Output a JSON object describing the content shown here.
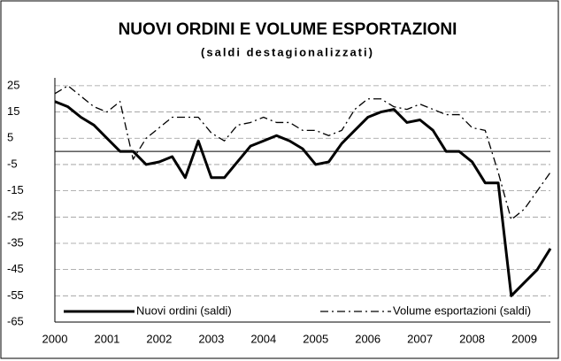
{
  "chart_data": {
    "type": "line",
    "title": "NUOVI ORDINI E VOLUME ESPORTAZIONI",
    "subtitle": "(saldi destagionalizzati)",
    "categories": [
      "2000",
      null,
      null,
      null,
      "2001",
      null,
      null,
      null,
      "2002",
      null,
      null,
      null,
      "2003",
      null,
      null,
      null,
      "2004",
      null,
      null,
      null,
      "2005",
      null,
      null,
      null,
      "2006",
      null,
      null,
      null,
      "2007",
      null,
      null,
      null,
      "2008",
      null,
      null,
      null,
      "2009",
      null,
      null
    ],
    "series": [
      {
        "name": "Nuovi ordini (saldi)",
        "color": "#000000",
        "style": "solid",
        "values": [
          19,
          17,
          13,
          10,
          5,
          0,
          0,
          -5,
          -4,
          -2,
          -10,
          4,
          -10,
          -10,
          -4,
          2,
          4,
          6,
          4,
          1,
          -5,
          -4,
          3,
          8,
          13,
          15,
          16,
          11,
          12,
          8,
          0,
          0,
          -4,
          -12,
          -12,
          -55,
          -50,
          -45,
          -37
        ]
      },
      {
        "name": "Volume esportazioni (saldi)",
        "color": "#000000",
        "style": "dashdot",
        "values": [
          22,
          25,
          21,
          17,
          15,
          19,
          -3,
          5,
          9,
          13,
          13,
          13,
          7,
          4,
          10,
          11,
          13,
          11,
          11,
          8,
          8,
          6,
          8,
          16,
          20,
          20,
          17,
          16,
          18,
          16,
          14,
          14,
          9,
          8,
          -8,
          -26,
          -22,
          -15,
          -8
        ]
      }
    ],
    "ylim": [
      -65,
      28
    ],
    "yticks": [
      25,
      15,
      5,
      -5,
      -15,
      -25,
      -35,
      -45,
      -55,
      -65
    ],
    "grid": true,
    "legend": "bottom-left"
  }
}
